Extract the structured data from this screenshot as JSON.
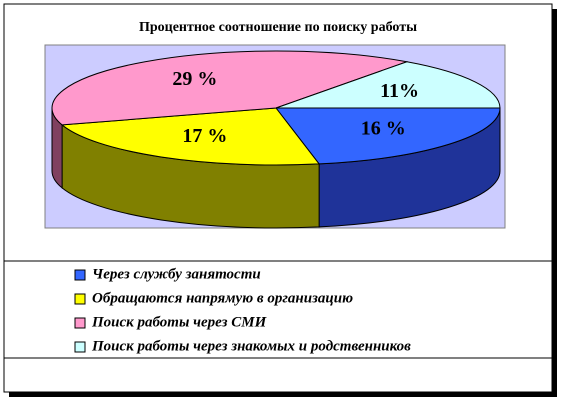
{
  "chart_data": {
    "type": "pie3d",
    "title": "Процентное соотношение по поиску работы",
    "categories": [
      "Через службу занятости",
      "Обращаются напрямую в организацию",
      "Поиск работы через СМИ",
      "Поиск работы через знакомых и родственников"
    ],
    "values": [
      16,
      17,
      29,
      11
    ],
    "value_labels": [
      "16 %",
      "17 %",
      "29 %",
      "11%"
    ],
    "colors": [
      "#3366ff",
      "#ffff00",
      "#ff99cc",
      "#ccffff"
    ],
    "side_colors": [
      "#1f3399",
      "#808000",
      "#804060",
      "#669999"
    ],
    "plot_background": "#ccccff"
  }
}
